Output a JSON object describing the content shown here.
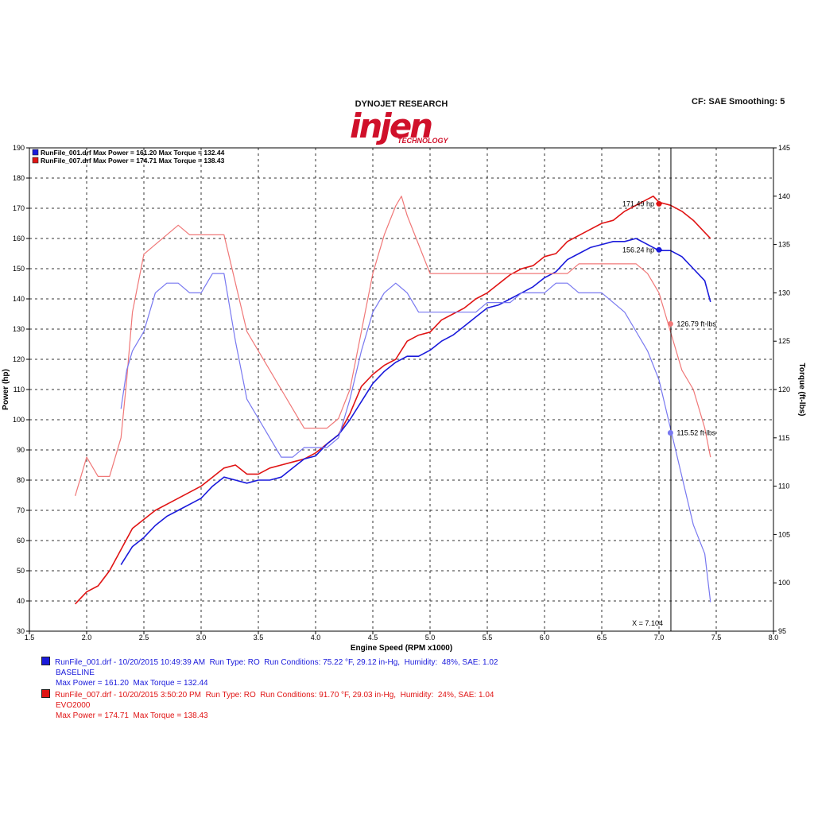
{
  "header": {
    "brand": "DYNOJET RESEARCH",
    "logo_main": "injen",
    "logo_sub": "TECHNOLOGY",
    "settings": "CF: SAE  Smoothing: 5"
  },
  "chart_data": {
    "type": "line",
    "xlabel": "Engine Speed (RPM x1000)",
    "ylabel_left": "Power (hp)",
    "ylabel_right": "Torque (ft-lbs)",
    "xlim": [
      1.5,
      8.0
    ],
    "ylim_left": [
      30,
      190
    ],
    "ylim_right": [
      95,
      145
    ],
    "xticks": [
      "1.5",
      "2.0",
      "2.5",
      "3.0",
      "3.5",
      "4.0",
      "4.5",
      "5.0",
      "5.5",
      "6.0",
      "6.5",
      "7.0",
      "7.5",
      "8.0"
    ],
    "yticks_left": [
      "30",
      "40",
      "50",
      "60",
      "70",
      "80",
      "90",
      "100",
      "110",
      "120",
      "130",
      "140",
      "150",
      "160",
      "170",
      "180",
      "190"
    ],
    "yticks_right": [
      "95",
      "100",
      "105",
      "110",
      "115",
      "120",
      "125",
      "130",
      "135",
      "140",
      "145"
    ],
    "grid": "dashed",
    "legend_position": "top-left",
    "legend": [
      {
        "text": "RunFile_001.drf Max Power = 161.20     Max Torque = 132.44",
        "color": "#1a1adb"
      },
      {
        "text": "RunFile_007.drf Max Power = 174.71     Max Torque = 138.43",
        "color": "#e01414"
      }
    ],
    "cursor_x": 7.104,
    "cursor_label": "X = 7.104",
    "series": [
      {
        "name": "RunFile_007.drf",
        "color": "#e01414",
        "axis": "left",
        "kind": "power",
        "x": [
          1.9,
          2.0,
          2.1,
          2.2,
          2.3,
          2.4,
          2.5,
          2.6,
          2.7,
          2.8,
          2.9,
          3.0,
          3.1,
          3.2,
          3.3,
          3.4,
          3.5,
          3.6,
          3.7,
          3.8,
          3.9,
          4.0,
          4.1,
          4.2,
          4.3,
          4.4,
          4.5,
          4.6,
          4.7,
          4.8,
          4.9,
          5.0,
          5.1,
          5.2,
          5.3,
          5.4,
          5.5,
          5.6,
          5.7,
          5.8,
          5.9,
          6.0,
          6.1,
          6.2,
          6.3,
          6.4,
          6.5,
          6.6,
          6.7,
          6.8,
          6.9,
          6.95,
          7.0,
          7.1,
          7.2,
          7.3,
          7.4,
          7.45
        ],
        "values": [
          39,
          43,
          45,
          50,
          57,
          64,
          67,
          70,
          72,
          74,
          76,
          78,
          81,
          84,
          85,
          82,
          82,
          84,
          85,
          86,
          87,
          89,
          92,
          95,
          102,
          111,
          115,
          118,
          120,
          126,
          128,
          129,
          133,
          135,
          137,
          140,
          142,
          145,
          148,
          150,
          151,
          154,
          155,
          159,
          161,
          163,
          165,
          166,
          169,
          171,
          173,
          174,
          172,
          171,
          169,
          166,
          162,
          160
        ]
      },
      {
        "name": "RunFile_001.drf",
        "color": "#1a1adb",
        "axis": "left",
        "kind": "power",
        "x": [
          2.3,
          2.4,
          2.5,
          2.6,
          2.7,
          2.8,
          2.9,
          3.0,
          3.1,
          3.2,
          3.3,
          3.4,
          3.5,
          3.6,
          3.7,
          3.8,
          3.9,
          4.0,
          4.1,
          4.2,
          4.3,
          4.4,
          4.5,
          4.6,
          4.7,
          4.8,
          4.9,
          5.0,
          5.1,
          5.2,
          5.3,
          5.4,
          5.5,
          5.6,
          5.7,
          5.8,
          5.9,
          6.0,
          6.1,
          6.2,
          6.3,
          6.4,
          6.5,
          6.6,
          6.7,
          6.8,
          6.9,
          7.0,
          7.1,
          7.2,
          7.3,
          7.4,
          7.45
        ],
        "values": [
          52,
          58,
          61,
          65,
          68,
          70,
          72,
          74,
          78,
          81,
          80,
          79,
          80,
          80,
          81,
          84,
          87,
          88,
          92,
          95,
          100,
          106,
          112,
          116,
          119,
          121,
          121,
          123,
          126,
          128,
          131,
          134,
          137,
          138,
          140,
          142,
          144,
          147,
          149,
          153,
          155,
          157,
          158,
          159,
          159,
          160,
          158,
          156,
          156,
          154,
          150,
          146,
          139
        ]
      },
      {
        "name": "RunFile_007.drf",
        "color": "#f07878",
        "axis": "right",
        "kind": "torque",
        "x": [
          1.9,
          2.0,
          2.1,
          2.15,
          2.2,
          2.3,
          2.35,
          2.4,
          2.5,
          2.6,
          2.7,
          2.8,
          2.9,
          3.0,
          3.1,
          3.2,
          3.3,
          3.4,
          3.5,
          3.6,
          3.7,
          3.8,
          3.9,
          4.0,
          4.1,
          4.2,
          4.3,
          4.4,
          4.5,
          4.6,
          4.7,
          4.75,
          4.8,
          4.9,
          5.0,
          5.1,
          5.2,
          5.3,
          5.4,
          5.5,
          5.6,
          5.7,
          5.8,
          5.9,
          6.0,
          6.1,
          6.2,
          6.3,
          6.4,
          6.5,
          6.6,
          6.7,
          6.8,
          6.9,
          7.0,
          7.1,
          7.2,
          7.3,
          7.4,
          7.45
        ],
        "values": [
          109,
          113,
          111,
          111,
          111,
          115,
          121,
          128,
          134,
          135,
          136,
          137,
          136,
          136,
          136,
          136,
          131,
          126,
          124,
          122,
          120,
          118,
          116,
          116,
          116,
          117,
          120,
          126,
          132,
          136,
          139,
          140,
          138,
          135,
          132,
          132,
          132,
          132,
          132,
          132,
          132,
          132,
          132,
          132,
          132,
          132,
          132,
          133,
          133,
          133,
          133,
          133,
          133,
          132,
          130,
          126,
          122,
          120,
          116,
          113
        ]
      },
      {
        "name": "RunFile_001.drf",
        "color": "#7878f0",
        "axis": "right",
        "kind": "torque",
        "x": [
          2.3,
          2.35,
          2.4,
          2.5,
          2.6,
          2.7,
          2.8,
          2.9,
          3.0,
          3.1,
          3.2,
          3.3,
          3.4,
          3.5,
          3.6,
          3.7,
          3.8,
          3.9,
          4.0,
          4.1,
          4.2,
          4.3,
          4.4,
          4.5,
          4.6,
          4.7,
          4.8,
          4.9,
          5.0,
          5.1,
          5.2,
          5.3,
          5.4,
          5.5,
          5.6,
          5.7,
          5.8,
          5.9,
          6.0,
          6.1,
          6.2,
          6.3,
          6.4,
          6.5,
          6.6,
          6.7,
          6.8,
          6.9,
          7.0,
          7.1,
          7.2,
          7.3,
          7.4,
          7.45
        ],
        "values": [
          118,
          122,
          124,
          126,
          130,
          131,
          131,
          130,
          130,
          132,
          132,
          125,
          119,
          117,
          115,
          113,
          113,
          114,
          114,
          114,
          115,
          119,
          124,
          128,
          130,
          131,
          130,
          128,
          128,
          128,
          128,
          128,
          128,
          129,
          129,
          129,
          130,
          130,
          130,
          131,
          131,
          130,
          130,
          130,
          129,
          128,
          126,
          124,
          121,
          116,
          111,
          106,
          103,
          98
        ]
      }
    ],
    "markers": [
      {
        "x": 7.0,
        "y": 171.49,
        "axis": "left",
        "color": "#e01414",
        "label": "171.49 hp",
        "side": "left"
      },
      {
        "x": 7.0,
        "y": 156.24,
        "axis": "left",
        "color": "#1a1adb",
        "label": "156.24 hp",
        "side": "left"
      },
      {
        "x": 7.1,
        "y": 126.79,
        "axis": "right",
        "color": "#f07878",
        "label": "126.79 ft-lbs",
        "side": "right"
      },
      {
        "x": 7.1,
        "y": 115.52,
        "axis": "right",
        "color": "#7878f0",
        "label": "115.52 ft-lbs",
        "side": "right"
      }
    ]
  },
  "runs": [
    {
      "line1": "RunFile_001.drf - 10/20/2015 10:49:39 AM  Run Type: RO  Run Conditions: 75.22 °F, 29.12 in-Hg,  Humidity:  48%, SAE: 1.02",
      "line2": "BASELINE",
      "line3": "Max Power = 161.20  Max Torque = 132.44",
      "color": "#1a1adb"
    },
    {
      "line1": "RunFile_007.drf - 10/20/2015 3:50:20 PM  Run Type: RO  Run Conditions: 91.70 °F, 29.03 in-Hg,  Humidity:  24%, SAE: 1.04",
      "line2": "EVO2000",
      "line3": "Max Power = 174.71  Max Torque = 138.43",
      "color": "#e01414"
    }
  ]
}
